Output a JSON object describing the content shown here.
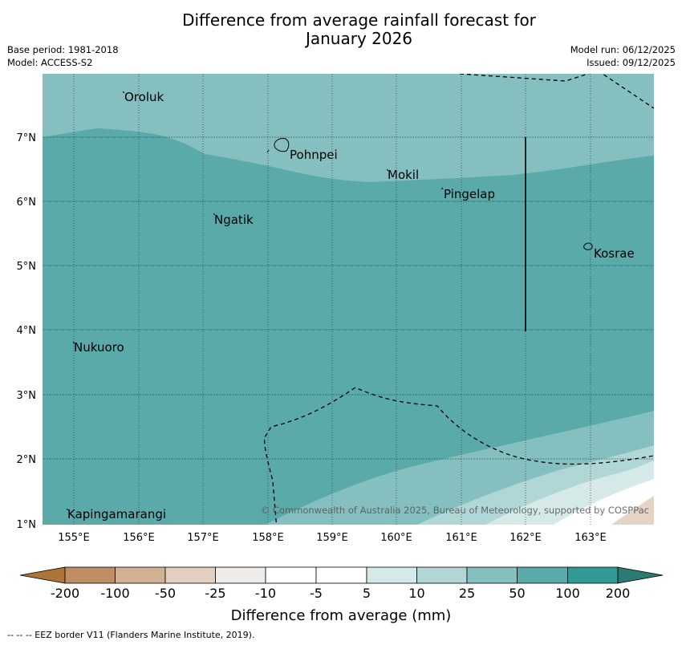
{
  "title": {
    "line1": "Difference from average rainfall forecast for",
    "line2": "January 2026"
  },
  "meta": {
    "base_period": "Base period: 1981-2018",
    "model": "Model: ACCESS-S2",
    "model_run": "Model run: 06/12/2025",
    "issued": "Issued: 09/12/2025"
  },
  "map": {
    "lon_labels": [
      "155°E",
      "156°E",
      "157°E",
      "158°E",
      "159°E",
      "160°E",
      "161°E",
      "162°E",
      "163°E"
    ],
    "lat_labels": [
      "7°N",
      "6°N",
      "5°N",
      "4°N",
      "3°N",
      "2°N",
      "1°N"
    ],
    "places": [
      {
        "name": "Oroluk"
      },
      {
        "name": "Pohnpei"
      },
      {
        "name": "Mokil"
      },
      {
        "name": "Pingelap"
      },
      {
        "name": "Ngatik"
      },
      {
        "name": "Kosrae"
      },
      {
        "name": "Nukuoro"
      },
      {
        "name": "Kapingamarangi"
      }
    ],
    "copyright": "© Commonwealth of Australia 2025, Bureau of Meteorology, supported by COSPPac",
    "colors": {
      "band_100": "#5aaaaa",
      "band_50": "#85bfbf",
      "band_25": "#b1d6d6",
      "band_10": "#d4e9e8",
      "band_5": "#ffffff",
      "band_neg10": "#e3d4c6"
    }
  },
  "colorbar": {
    "ticks": [
      "-200",
      "-100",
      "-50",
      "-25",
      "-10",
      "-5",
      "5",
      "10",
      "25",
      "50",
      "100",
      "200"
    ],
    "colors": [
      "#ad7539",
      "#bf8d63",
      "#d2b094",
      "#e3cfbf",
      "#eeebe8",
      "#ffffff",
      "#d5e9e8",
      "#b1d6d5",
      "#85bfbf",
      "#5aaaaa",
      "#339995",
      "#2b7b73"
    ],
    "label": "Difference from average (mm)"
  },
  "footer": {
    "eez_note": "--  --  -- EEZ border V11 (Flanders Marine Institute, 2019)."
  }
}
